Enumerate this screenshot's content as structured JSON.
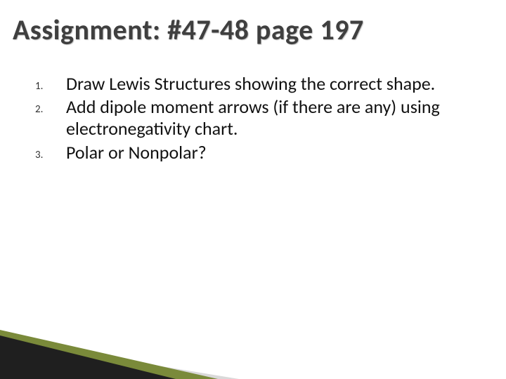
{
  "title": "Assignment: #47-48 page 197",
  "title_color": "#3f3f3f",
  "title_fontsize": 40,
  "items": [
    "Draw Lewis Structures showing the correct shape.",
    "Add dipole moment arrows (if there are any) using electronegativity chart.",
    "Polar or Nonpolar?"
  ],
  "body_fontsize": 26,
  "body_color": "#111111",
  "number_fontsize": 15,
  "background_color": "#ffffff",
  "wedges": {
    "dark": "#1f1f1f",
    "olive": "#7a8a3a",
    "gray": "#d9d9d9"
  }
}
